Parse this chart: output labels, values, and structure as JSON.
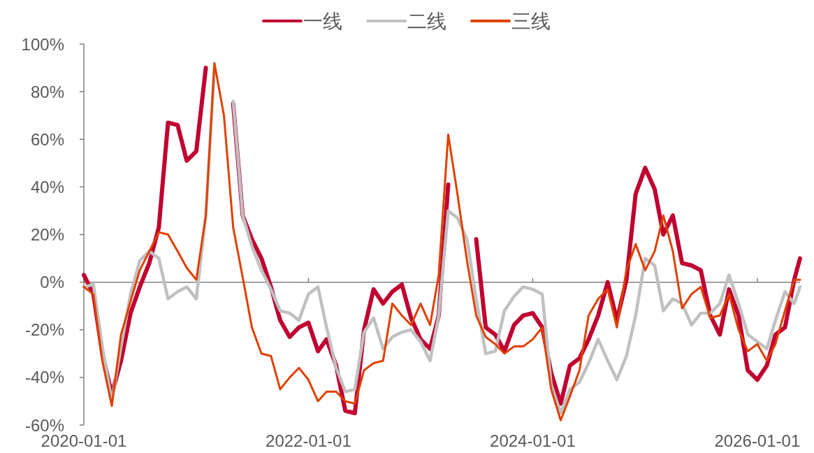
{
  "chart_data": {
    "type": "line",
    "legend": "top",
    "grid": false,
    "marker": "none",
    "line_style": "solid",
    "x": [
      "2020-01-01",
      "2020-02-01",
      "2020-03-01",
      "2020-04-01",
      "2020-05-01",
      "2020-06-01",
      "2020-07-01",
      "2020-08-01",
      "2020-09-01",
      "2020-10-01",
      "2020-11-01",
      "2020-12-01",
      "2021-01-01",
      "2021-02-01",
      "2021-03-01",
      "2021-04-01",
      "2021-05-01",
      "2021-06-01",
      "2021-07-01",
      "2021-08-01",
      "2021-09-01",
      "2021-10-01",
      "2021-11-01",
      "2021-12-01",
      "2022-01-01",
      "2022-02-01",
      "2022-03-01",
      "2022-04-01",
      "2022-05-01",
      "2022-06-01",
      "2022-07-01",
      "2022-08-01",
      "2022-09-01",
      "2022-10-01",
      "2022-11-01",
      "2022-12-01",
      "2023-01-01",
      "2023-02-01",
      "2023-03-01",
      "2023-04-01",
      "2023-05-01",
      "2023-06-01",
      "2023-07-01",
      "2023-08-01",
      "2023-09-01",
      "2023-10-01",
      "2023-11-01",
      "2023-12-01",
      "2024-01-01",
      "2024-02-01",
      "2024-03-01",
      "2024-04-01",
      "2024-05-01",
      "2024-06-01",
      "2024-07-01",
      "2024-08-01",
      "2024-09-01",
      "2024-10-01",
      "2024-11-01",
      "2024-12-01",
      "2025-01-01",
      "2025-02-01",
      "2025-03-01",
      "2025-04-01",
      "2025-05-01",
      "2025-06-01",
      "2025-07-01",
      "2025-08-01",
      "2025-09-01",
      "2025-10-01",
      "2025-11-01",
      "2025-12-01",
      "2026-01-01",
      "2026-02-01",
      "2026-03-01",
      "2026-04-01",
      "2026-05-01",
      "2026-05-20"
    ],
    "xlim": [
      "2020-01-01",
      "2026-05-20"
    ],
    "xticks": [
      "2020-01-01",
      "2022-01-01",
      "2024-01-01",
      "2026-01-01"
    ],
    "ylim": [
      -60,
      100
    ],
    "yticks": [
      {
        "value": -60,
        "label": "-60%"
      },
      {
        "value": -40,
        "label": "-40%"
      },
      {
        "value": -20,
        "label": "-20%"
      },
      {
        "value": 0,
        "label": "0%"
      },
      {
        "value": 20,
        "label": "20%"
      },
      {
        "value": 40,
        "label": "40%"
      },
      {
        "value": 60,
        "label": "60%"
      },
      {
        "value": 80,
        "label": "80%"
      },
      {
        "value": 100,
        "label": "100%"
      }
    ],
    "ref_lines": [
      {
        "axis": "y",
        "value": 0,
        "color": "#808080"
      }
    ],
    "series": [
      {
        "name": "一线",
        "color": "#c00030",
        "values": [
          3,
          -5,
          -30,
          -47,
          -33,
          -13,
          -2,
          8,
          23,
          67,
          66,
          51,
          55,
          90,
          null,
          null,
          75,
          28,
          18,
          10,
          -2,
          -16,
          -23,
          -19,
          -17,
          -29,
          -24,
          -35,
          -54,
          -55,
          -20,
          -3,
          -9,
          -4,
          -1,
          -15,
          -24,
          -28,
          -14,
          41,
          null,
          null,
          18,
          -19,
          -22,
          -29,
          -18,
          -14,
          -13,
          -19,
          -38,
          -51,
          -35,
          -32,
          -24,
          -14,
          0,
          -16,
          1,
          37,
          48,
          39,
          20,
          28,
          8,
          7,
          5,
          -14,
          -22,
          -3,
          -14,
          -37,
          -41,
          -35,
          -22,
          -19,
          1,
          10
        ]
      },
      {
        "name": "二线",
        "color": "#c0c0c0",
        "values": [
          -2,
          -1,
          -27,
          -50,
          -27,
          -5,
          9,
          13,
          10,
          -7,
          -4,
          -2,
          -7,
          28,
          90,
          null,
          76,
          28,
          15,
          5,
          -3,
          -12,
          -13,
          -16,
          -5,
          -2,
          -19,
          -36,
          -46,
          -45,
          -21,
          -15,
          -28,
          -23,
          -21,
          -20,
          -25,
          -33,
          -14,
          30,
          27,
          18,
          -7,
          -30,
          -29,
          -12,
          -6,
          -2,
          -3,
          -5,
          -43,
          -55,
          -45,
          -42,
          -34,
          -24,
          -33,
          -41,
          -31,
          -14,
          10,
          7,
          -12,
          -7,
          -9,
          -18,
          -13,
          -13,
          -9,
          3,
          -9,
          -22,
          -25,
          -28,
          -16,
          -4,
          -9,
          -2
        ]
      },
      {
        "name": "三线",
        "color": "#e04000",
        "values": [
          -2,
          -5,
          -33,
          -52,
          -22,
          -8,
          5,
          13,
          21,
          20,
          13,
          6,
          1,
          28,
          92,
          70,
          23,
          2,
          -19,
          -30,
          -31,
          -45,
          -40,
          -36,
          -41,
          -50,
          -46,
          -46,
          -50,
          -51,
          -37,
          -34,
          -33,
          -9,
          -14,
          -18,
          -9,
          -18,
          3,
          62,
          37,
          9,
          -14,
          -23,
          -26,
          -30,
          -27,
          -27,
          -24,
          -19,
          -45,
          -58,
          -48,
          -37,
          -14,
          -7,
          -3,
          -19,
          5,
          16,
          5,
          13,
          28,
          13,
          -11,
          -5,
          -2,
          -15,
          -14,
          -5,
          -20,
          -29,
          -26,
          -33,
          -26,
          -12,
          1,
          1
        ]
      }
    ]
  }
}
